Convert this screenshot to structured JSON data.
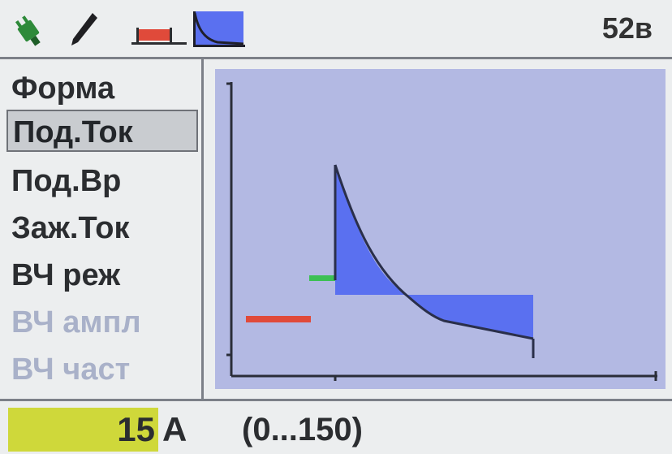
{
  "status_bar": {
    "icons": [
      "plug-icon",
      "electrode-icon",
      "mode-bar-icon",
      "waveform-icon"
    ],
    "voltage": "52в",
    "accent_red": "#e04a3a",
    "accent_blue": "#5a70f0"
  },
  "menu": {
    "items": [
      {
        "label": "Форма",
        "state": "normal"
      },
      {
        "label": "Под.Ток",
        "state": "selected"
      },
      {
        "label": "Под.Вр",
        "state": "normal"
      },
      {
        "label": "Заж.Ток",
        "state": "normal"
      },
      {
        "label": "ВЧ реж",
        "state": "normal"
      },
      {
        "label": "ВЧ ампл",
        "state": "disabled"
      },
      {
        "label": "ВЧ част",
        "state": "disabled"
      }
    ]
  },
  "graph": {
    "colors": {
      "background": "#b3b9e3",
      "fill": "#5a70f0",
      "curve": "#2a2f4a",
      "red_segment": "#e04a3a",
      "green_segment": "#3cc054"
    }
  },
  "bottom": {
    "value": "15",
    "unit": "A",
    "range": "(0...150)",
    "highlight_color": "#cfd83a"
  }
}
